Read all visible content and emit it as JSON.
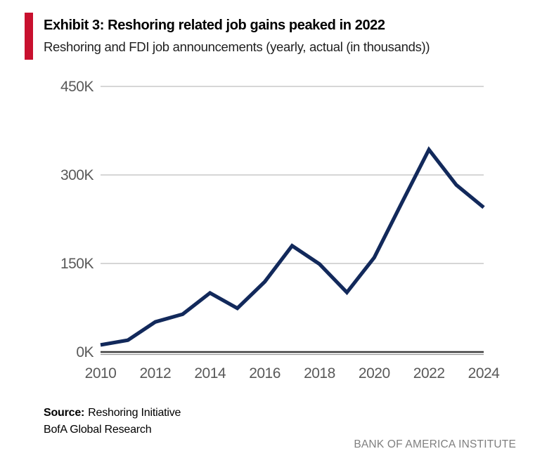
{
  "header": {
    "accent_color": "#C8102E"
  },
  "chart_data": {
    "type": "line",
    "title": "Exhibit 3: Reshoring related job gains peaked in 2022",
    "subtitle": "Reshoring and FDI job announcements (yearly, actual (in thousands))",
    "x": [
      2010,
      2011,
      2012,
      2013,
      2014,
      2015,
      2016,
      2017,
      2018,
      2019,
      2020,
      2021,
      2022,
      2023,
      2024
    ],
    "series": [
      {
        "name": "Reshoring and FDI job announcements (thousands)",
        "values": [
          12,
          20,
          51,
          64,
          100,
          74,
          119,
          180,
          149,
          101,
          160,
          252,
          343,
          283,
          245
        ]
      }
    ],
    "ylim": [
      0,
      450
    ],
    "yticks": [
      0,
      150,
      300,
      450
    ],
    "ytick_labels": [
      "0K",
      "150K",
      "300K",
      "450K"
    ],
    "xtick_labels": [
      "2010",
      "2012",
      "2014",
      "2016",
      "2018",
      "2020",
      "2022",
      "2024"
    ],
    "xtick_years": [
      2010,
      2012,
      2014,
      2016,
      2018,
      2020,
      2022,
      2024
    ],
    "grid": true,
    "legend": "none",
    "line_color": "#12295B",
    "grid_color": "#C9C9C9",
    "axis_color": "#3D3D3D",
    "axis_shadow_color": "#9A9A9A",
    "tick_label_color": "#595959"
  },
  "footer": {
    "source_label": "Source:",
    "source_value": "Reshoring Initiative",
    "source_line2": "BofA Global Research",
    "brand": "BANK OF AMERICA INSTITUTE"
  }
}
